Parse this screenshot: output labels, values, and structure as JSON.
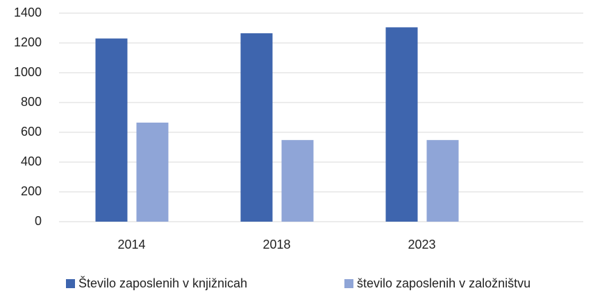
{
  "chart_data": {
    "type": "bar",
    "categories": [
      "2014",
      "2018",
      "2023"
    ],
    "series": [
      {
        "name": "Število zaposlenih v knjižnicah",
        "color": "#3e65ae",
        "values": [
          1230,
          1265,
          1305
        ]
      },
      {
        "name": "število zaposlenih v založništvu",
        "color": "#8fa5d7",
        "values": [
          665,
          548,
          548
        ]
      }
    ],
    "ylim": [
      0,
      1400
    ],
    "yticks": [
      0,
      200,
      400,
      600,
      800,
      1000,
      1200,
      1400
    ],
    "grid": true,
    "legend": "bottom"
  }
}
